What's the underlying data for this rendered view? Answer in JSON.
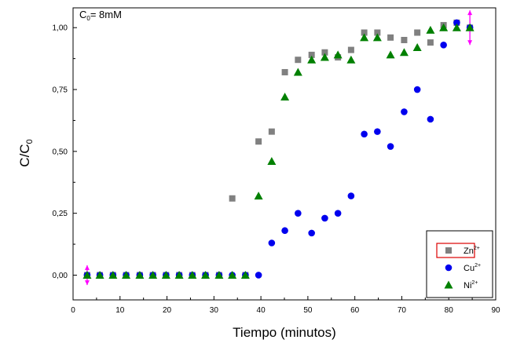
{
  "annotation": {
    "main": "C",
    "sub": "0",
    "rest": "= 8mM"
  },
  "axes": {
    "xlabel": "Tiempo (minutos)",
    "ylabel_main": "C/C",
    "ylabel_sub": "0",
    "xlim": [
      0,
      90
    ],
    "ylim": [
      -0.1,
      1.08
    ],
    "xticks": [
      0,
      10,
      20,
      30,
      40,
      50,
      60,
      70,
      80,
      90
    ],
    "xtick_labels": [
      "0",
      "10",
      "20",
      "30",
      "40",
      "50",
      "60",
      "70",
      "80",
      "90"
    ],
    "yticks": [
      0,
      0.25,
      0.5,
      0.75,
      1.0
    ],
    "ytick_labels": [
      "0,00",
      "0,25",
      "0,50",
      "0,75",
      "1,00"
    ]
  },
  "chart_data": {
    "type": "scatter",
    "xlabel": "Tiempo (minutos)",
    "ylabel": "C/C0",
    "legend_position": "bottom-right",
    "series": [
      {
        "name": "Zn2+",
        "legend_base": "Zn",
        "legend_sup": "2+",
        "marker": "square",
        "color": "#808080",
        "x": [
          3,
          5.7,
          8.5,
          11.3,
          14.2,
          17,
          19.8,
          22.6,
          25.4,
          28.2,
          31.1,
          33.9,
          36.7,
          39.5,
          42.3,
          45.1,
          47.9,
          50.8,
          53.6,
          56.4,
          59.2,
          62,
          64.8,
          67.6,
          70.5,
          73.3,
          76.1,
          78.9,
          81.7,
          84.5
        ],
        "y": [
          0,
          0,
          0,
          0,
          0,
          0,
          0,
          0,
          0,
          0,
          0,
          0.31,
          0,
          0.54,
          0.58,
          0.82,
          0.87,
          0.89,
          0.9,
          0.88,
          0.91,
          0.98,
          0.98,
          0.96,
          0.95,
          0.98,
          0.94,
          1.01,
          1.02,
          1.0
        ]
      },
      {
        "name": "Cu2+",
        "legend_base": "Cu",
        "legend_sup": "2+",
        "marker": "circle",
        "color": "#0000ee",
        "x": [
          3,
          5.7,
          8.5,
          11.3,
          14.2,
          17,
          19.8,
          22.6,
          25.4,
          28.2,
          31.1,
          33.9,
          36.7,
          39.5,
          42.3,
          45.1,
          47.9,
          50.8,
          53.6,
          56.4,
          59.2,
          62,
          64.8,
          67.6,
          70.5,
          73.3,
          76.1,
          78.9,
          81.7,
          84.5
        ],
        "y": [
          0,
          0,
          0,
          0,
          0,
          0,
          0,
          0,
          0,
          0,
          0,
          0,
          0,
          0,
          0.13,
          0.18,
          0.25,
          0.17,
          0.23,
          0.25,
          0.32,
          0.57,
          0.58,
          0.52,
          0.66,
          0.75,
          0.63,
          0.93,
          1.02,
          1.0
        ]
      },
      {
        "name": "Ni2+",
        "legend_base": "Ni",
        "legend_sup": "2+",
        "marker": "triangle",
        "color": "#008000",
        "x": [
          3,
          5.7,
          8.5,
          11.3,
          14.2,
          17,
          19.8,
          22.6,
          25.4,
          28.2,
          31.1,
          33.9,
          36.7,
          39.5,
          42.3,
          45.1,
          47.9,
          50.8,
          53.6,
          56.4,
          59.2,
          62,
          64.8,
          67.6,
          70.5,
          73.3,
          76.1,
          78.9,
          81.7,
          84.5
        ],
        "y": [
          0,
          0,
          0,
          0,
          0,
          0,
          0,
          0,
          0,
          0,
          0,
          0,
          0,
          0.32,
          0.46,
          0.72,
          0.82,
          0.87,
          0.88,
          0.89,
          0.87,
          0.96,
          0.96,
          0.89,
          0.9,
          0.92,
          0.99,
          1.0,
          1.0,
          1.0
        ]
      }
    ],
    "error_bars": [
      {
        "x": 3,
        "y": 0,
        "err": 0.04,
        "color": "#ff00ff"
      },
      {
        "x": 84.5,
        "y": 1.0,
        "err": 0.07,
        "color": "#ff00ff"
      }
    ]
  },
  "legend": {
    "highlight_color": "#dd0000"
  }
}
